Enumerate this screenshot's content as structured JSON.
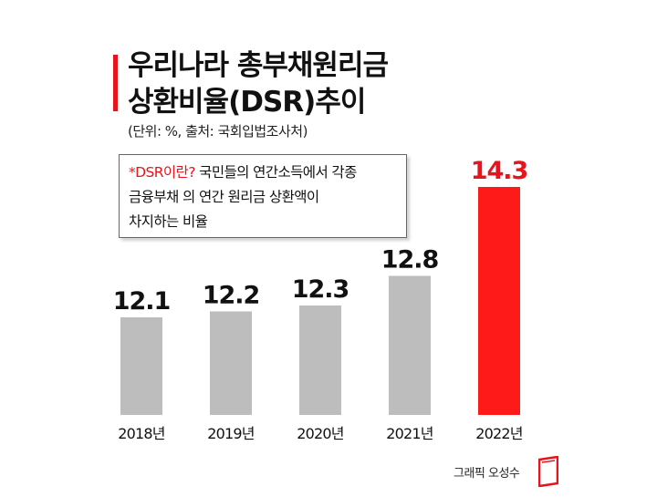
{
  "header": {
    "title_line1": "우리나라 총부채원리금",
    "title_line2": "상환비율(DSR)추이",
    "subtitle": "(단위: %, 출처: 국회입법조사처)"
  },
  "note": {
    "highlight": "*DSR이란?",
    "line1_rest": " 국민들의 연간소득에서 각종",
    "line2": "금융부채 의 연간 원리금  상환액이",
    "line3": "차지하는 비율"
  },
  "credit": {
    "text": "그래픽 오성수",
    "icon": "document-logo-icon"
  },
  "colors": {
    "accent": "#e8141b",
    "bar": "#bdbdbd",
    "highlight_bar": "#ff1a1a"
  },
  "chart_data": {
    "type": "bar",
    "categories": [
      "2018년",
      "2019년",
      "2020년",
      "2021년",
      "2022년"
    ],
    "values": [
      12.1,
      12.2,
      12.3,
      12.8,
      14.3
    ],
    "value_labels": [
      "12.1",
      "12.2",
      "12.3",
      "12.8",
      "14.3"
    ],
    "highlight_index": 4,
    "title": "우리나라 총부채원리금 상환비율(DSR)추이",
    "xlabel": "",
    "ylabel": "",
    "grid": false,
    "legend": "none"
  }
}
